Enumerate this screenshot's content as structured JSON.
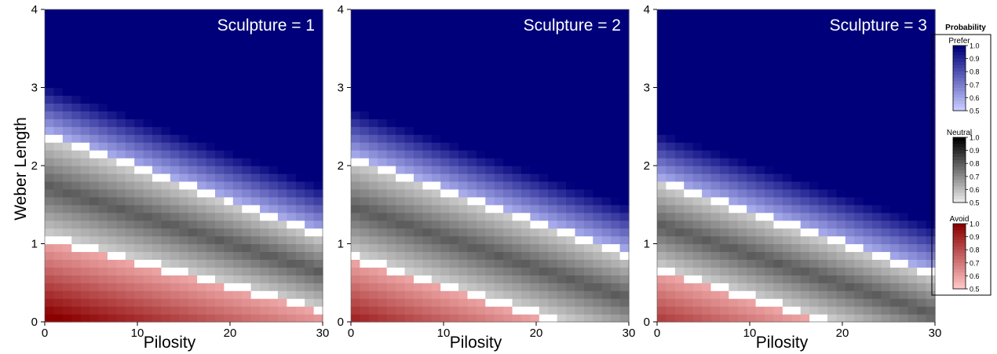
{
  "chart_data": {
    "type": "heatmap",
    "facet_title_prefix": "Sculpture = ",
    "facets": [
      1,
      2,
      3
    ],
    "xlabel": "Pilosity",
    "ylabel": "Weber Length",
    "xlim": [
      0,
      30
    ],
    "ylim": [
      0,
      4
    ],
    "xticks": [
      0,
      10,
      20,
      30
    ],
    "yticks": [
      0,
      1,
      2,
      3,
      4
    ],
    "grid": false,
    "boundaries": {
      "description_free": true,
      "sculpture_1": {
        "avoid_upper": [
          1.05,
          0.12
        ],
        "prefer_lower": [
          2.45,
          1.15
        ]
      },
      "sculpture_2": {
        "avoid_upper": [
          0.8,
          -0.3
        ],
        "prefer_lower": [
          2.15,
          0.9
        ]
      },
      "sculpture_3": {
        "avoid_upper": [
          0.65,
          -0.45
        ],
        "prefer_lower": [
          1.85,
          0.65
        ]
      }
    },
    "legend": {
      "title": "Probability",
      "placement": "right",
      "sections": [
        {
          "name": "Prefer",
          "color_low": "#c6cbff",
          "color_high": "#00007a",
          "ticks": [
            "1.0",
            "0.9",
            "0.8",
            "0.7",
            "0.6",
            "0.5"
          ]
        },
        {
          "name": "Neutral",
          "color_low": "#e6e6e6",
          "color_high": "#000000",
          "ticks": [
            "1.0",
            "0.9",
            "0.8",
            "0.7",
            "0.6",
            "0.5"
          ]
        },
        {
          "name": "Avoid",
          "color_low": "#ffc4c4",
          "color_high": "#8b0000",
          "ticks": [
            "1.0",
            "0.9",
            "0.8",
            "0.7",
            "0.6",
            "0.5"
          ]
        }
      ]
    }
  }
}
